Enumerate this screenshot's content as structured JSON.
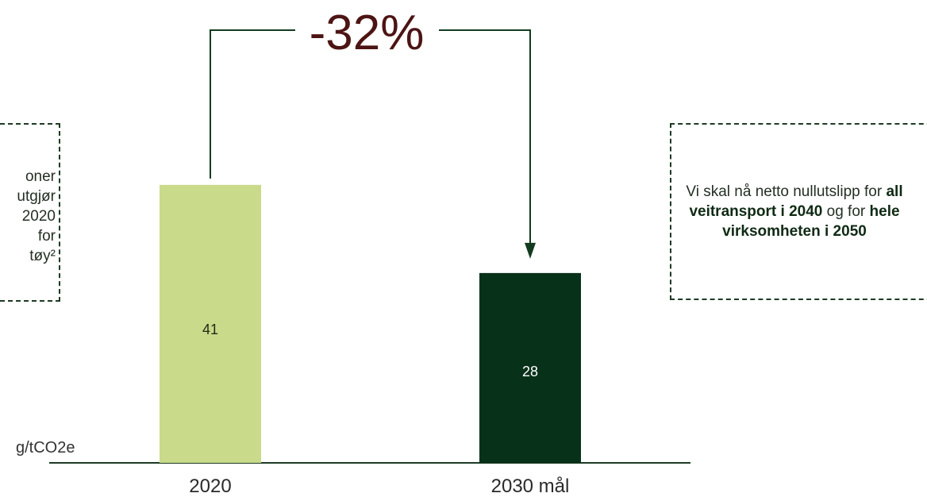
{
  "chart_data": {
    "type": "bar",
    "categories": [
      "2020",
      "2030 mål"
    ],
    "values": [
      41,
      28
    ],
    "ylabel": "g/tCO2e",
    "colors": [
      "#c9da8b",
      "#08311a"
    ],
    "value_label_colors": [
      "#1f2b16",
      "#ffffff"
    ],
    "change_label": "-32%",
    "change_label_color": "#4d1414",
    "connector_color": "#133b1f"
  },
  "left_note": {
    "lines": [
      "oner",
      "utgjør",
      "2020",
      "for",
      "tøy²"
    ]
  },
  "right_note": {
    "text_1": "Vi skal nå netto nullutslipp for ",
    "bold_1": "all veitransport i 2040",
    "text_2": " og for ",
    "bold_2": "hele virksomheten i 2050"
  }
}
